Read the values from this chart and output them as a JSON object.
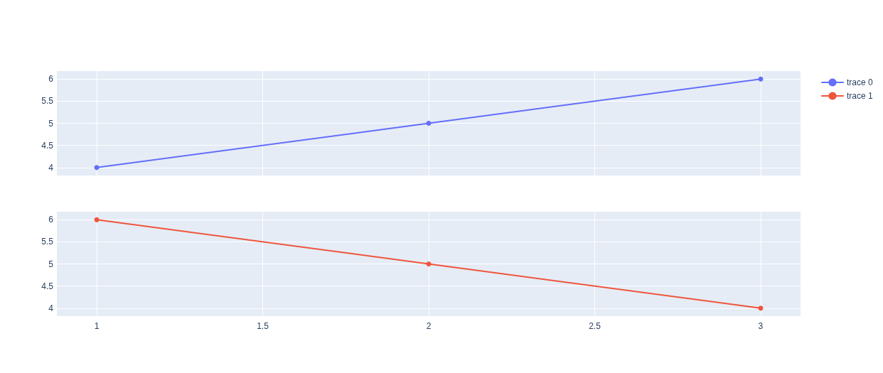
{
  "chart_data": [
    {
      "type": "line",
      "x": [
        1,
        2,
        3
      ],
      "series": [
        {
          "name": "trace 0",
          "color": "#636efa",
          "values": [
            4,
            5,
            6
          ]
        }
      ],
      "xlim": [
        0.88,
        3.12
      ],
      "xticks": [
        1,
        1.5,
        2,
        2.5,
        3
      ],
      "ylim": [
        3.82,
        6.18
      ],
      "yticks": [
        4,
        4.5,
        5,
        5.5,
        6
      ],
      "grid": true,
      "legend": "top right",
      "marker": "circle",
      "tick_labels": "y"
    },
    {
      "type": "line",
      "x": [
        1,
        2,
        3
      ],
      "series": [
        {
          "name": "trace 1",
          "color": "#ef553b",
          "values": [
            6,
            5,
            4
          ]
        }
      ],
      "xlim": [
        0.88,
        3.12
      ],
      "xticks": [
        1,
        1.5,
        2,
        2.5,
        3
      ],
      "ylim": [
        3.82,
        6.18
      ],
      "yticks": [
        4,
        4.5,
        5,
        5.5,
        6
      ],
      "grid": true,
      "legend": "top right",
      "marker": "circle"
    }
  ]
}
